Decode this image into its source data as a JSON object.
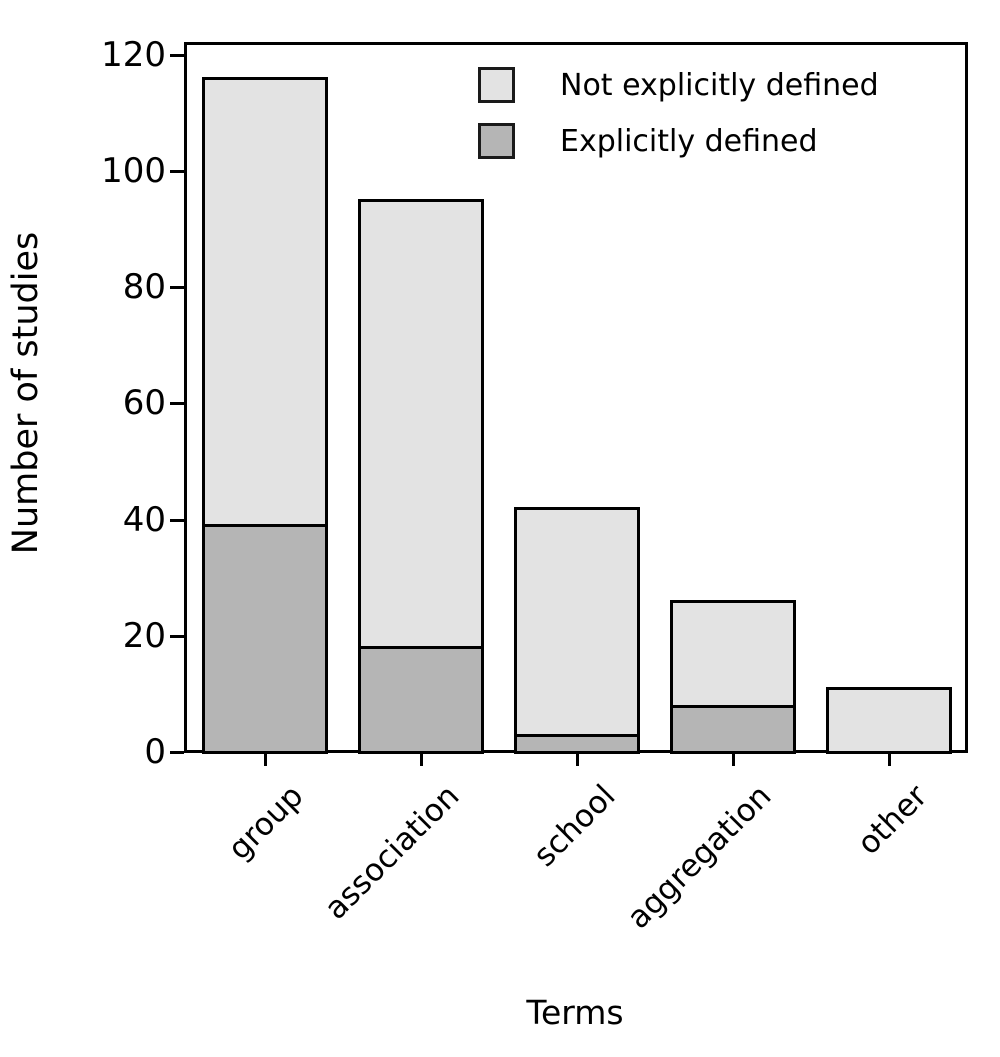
{
  "chart_data": {
    "type": "bar",
    "stacked": true,
    "title": "",
    "xlabel": "Terms",
    "ylabel": "Number of studies",
    "categories": [
      "group",
      "association",
      "school",
      "aggregation",
      "other"
    ],
    "series": [
      {
        "name": "Explicitly defined",
        "color": "#b5b5b5",
        "values": [
          39,
          18,
          3,
          8,
          0
        ]
      },
      {
        "name": "Not explicitly defined",
        "color": "#e3e3e3",
        "values": [
          77,
          77,
          39,
          18,
          11
        ]
      }
    ],
    "totals": [
      116,
      95,
      42,
      26,
      11
    ],
    "ylim": [
      0,
      120
    ],
    "yticks": [
      0,
      20,
      40,
      60,
      80,
      100,
      120
    ],
    "grid": false,
    "bar_outline_color": "#000000",
    "legend": {
      "position": "upper-right",
      "entries": [
        {
          "label": "Not explicitly defined",
          "color": "#e3e3e3"
        },
        {
          "label": "Explicitly defined",
          "color": "#b5b5b5"
        }
      ]
    }
  }
}
